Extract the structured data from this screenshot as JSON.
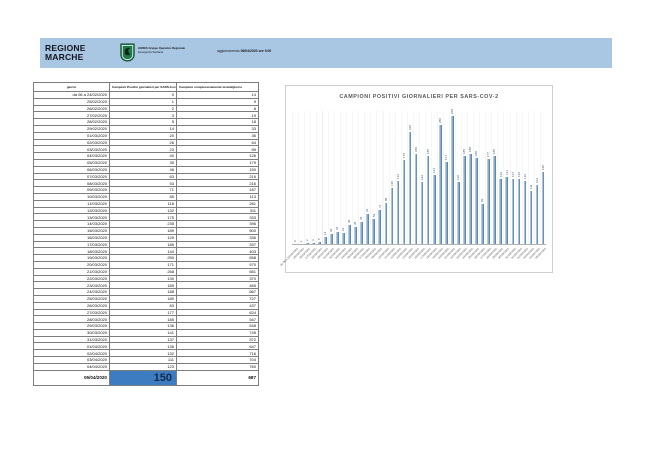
{
  "header": {
    "logo_line1": "REGIONE",
    "logo_line2": "MARCHE",
    "org_name": "GORES Gruppo Operativo Regionale",
    "org_subtitle": "Emergenza Sanitaria",
    "update_label": "aggiornamento",
    "update_value": "06/04/2020 ore 9.00",
    "band_color": "#a9c7e2"
  },
  "table": {
    "columns": [
      "giorno",
      "Campioni Positivi giornalieri per SARS-Cov-2",
      "Campioni complessivamente testati/giorno"
    ],
    "rows": [
      [
        "da 06 a 24/02/2020",
        "0",
        "14"
      ],
      [
        "25/02/2020",
        "1",
        "9"
      ],
      [
        "26/02/2020",
        "2",
        "8"
      ],
      [
        "27/02/2020",
        "3",
        "19"
      ],
      [
        "28/02/2020",
        "5",
        "18"
      ],
      [
        "29/02/2020",
        "14",
        "33"
      ],
      [
        "01/03/2020",
        "20",
        "36"
      ],
      [
        "02/03/2020",
        "26",
        "64"
      ],
      [
        "03/03/2020",
        "23",
        "89"
      ],
      [
        "04/03/2020",
        "40",
        "126"
      ],
      [
        "05/03/2020",
        "35",
        "179"
      ],
      [
        "06/03/2020",
        "46",
        "150"
      ],
      [
        "07/03/2020",
        "63",
        "216"
      ],
      [
        "08/03/2020",
        "53",
        "216"
      ],
      [
        "09/03/2020",
        "71",
        "187"
      ],
      [
        "10/03/2020",
        "85",
        "113"
      ],
      [
        "11/03/2020",
        "118",
        "261"
      ],
      [
        "12/03/2020",
        "132",
        "311"
      ],
      [
        "13/03/2020",
        "175",
        "333"
      ],
      [
        "14/03/2020",
        "235",
        "396"
      ],
      [
        "15/03/2020",
        "189",
        "500"
      ],
      [
        "16/03/2020",
        "129",
        "336"
      ],
      [
        "17/03/2020",
        "185",
        "337"
      ],
      [
        "18/03/2020",
        "144",
        "403"
      ],
      [
        "19/03/2020",
        "250",
        "658"
      ],
      [
        "20/03/2020",
        "171",
        "570"
      ],
      [
        "21/03/2020",
        "268",
        "651"
      ],
      [
        "22/03/2020",
        "130",
        "370"
      ],
      [
        "23/03/2020",
        "185",
        "465"
      ],
      [
        "24/03/2020",
        "188",
        "667"
      ],
      [
        "25/03/2020",
        "180",
        "727"
      ],
      [
        "26/03/2020",
        "83",
        "437"
      ],
      [
        "27/03/2020",
        "177",
        "624"
      ],
      [
        "28/03/2020",
        "185",
        "547"
      ],
      [
        "29/03/2020",
        "136",
        "548"
      ],
      [
        "30/03/2020",
        "141",
        "745"
      ],
      [
        "31/03/2020",
        "137",
        "572"
      ],
      [
        "01/04/2020",
        "136",
        "647"
      ],
      [
        "02/04/2020",
        "132",
        "716"
      ],
      [
        "03/04/2020",
        "111",
        "704"
      ],
      [
        "04/04/2020",
        "123",
        "760"
      ]
    ],
    "total_row": {
      "giorno": "05/04/2020",
      "positivi": "150",
      "testati": "687",
      "highlight_color": "#3e7cc1"
    }
  },
  "chart_data": {
    "type": "bar",
    "title": "CAMPIONI POSITIVI GIORNALIERI PER SARS-COV-2",
    "categories": [
      "da 06 a 24/02/2020",
      "25/02/2020",
      "26/02/2020",
      "27/02/2020",
      "28/02/2020",
      "29/02/2020",
      "01/03/2020",
      "02/03/2020",
      "03/03/2020",
      "04/03/2020",
      "05/03/2020",
      "06/03/2020",
      "07/03/2020",
      "08/03/2020",
      "09/03/2020",
      "10/03/2020",
      "11/03/2020",
      "12/03/2020",
      "13/03/2020",
      "14/03/2020",
      "15/03/2020",
      "16/03/2020",
      "17/03/2020",
      "18/03/2020",
      "19/03/2020",
      "20/03/2020",
      "21/03/2020",
      "22/03/2020",
      "23/03/2020",
      "24/03/2020",
      "25/03/2020",
      "26/03/2020",
      "27/03/2020",
      "28/03/2020",
      "29/03/2020",
      "30/03/2020",
      "31/03/2020",
      "01/04/2020",
      "02/04/2020",
      "03/04/2020",
      "04/04/2020",
      "05/04/2020"
    ],
    "values": [
      0,
      1,
      2,
      3,
      5,
      14,
      20,
      26,
      23,
      40,
      35,
      46,
      63,
      53,
      71,
      85,
      118,
      132,
      175,
      235,
      189,
      129,
      185,
      144,
      250,
      171,
      268,
      130,
      185,
      188,
      180,
      83,
      177,
      185,
      136,
      141,
      137,
      136,
      132,
      111,
      123,
      150
    ],
    "xlabel": "",
    "ylabel": "",
    "ylim": [
      0,
      270
    ],
    "grid": true,
    "data_labels": true,
    "legend": "none",
    "bar_color": "#7fa8cd"
  }
}
